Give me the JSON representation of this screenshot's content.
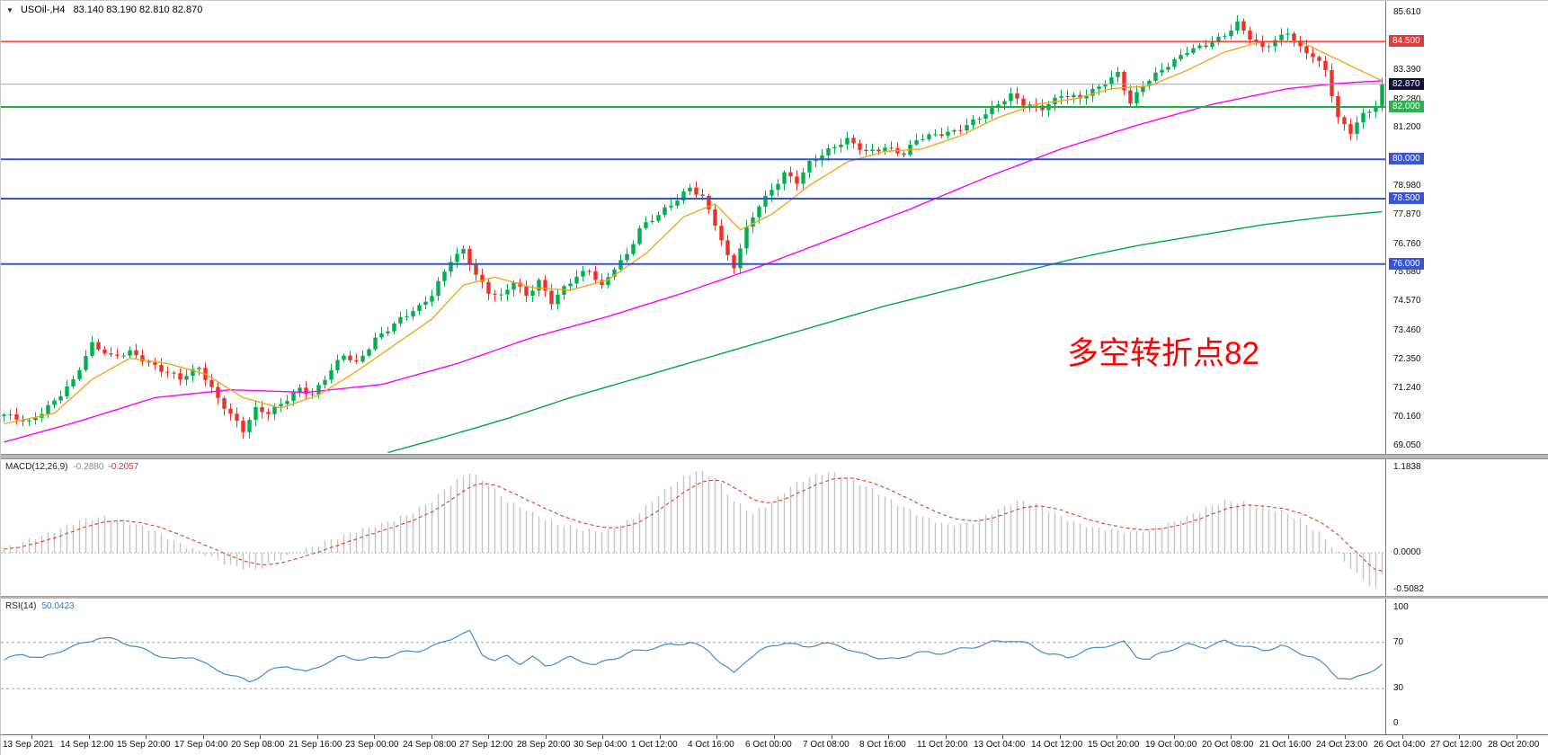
{
  "header": {
    "symbol_period": "USOil-,H4",
    "ohlc": "83.140 83.190 82.810 82.870"
  },
  "annotation": {
    "text": "多空转折点82",
    "color": "#ff0000"
  },
  "macd": {
    "label": "MACD(12,26,9)",
    "value_main": "-0.2880",
    "value_signal": "-0.2057",
    "axis_labels": [
      "1.1838",
      "0.0000",
      "-0.5082"
    ]
  },
  "rsi": {
    "label": "RSI(14)",
    "value": "50.0423",
    "axis_labels": [
      "100",
      "70",
      "30",
      "0"
    ],
    "levels": [
      70,
      30
    ]
  },
  "price_axis": {
    "tick_labels": [
      "85.610",
      "83.390",
      "82.280",
      "81.200",
      "78.980",
      "77.870",
      "76.760",
      "75.680",
      "74.570",
      "73.460",
      "72.350",
      "71.240",
      "70.160",
      "69.050"
    ],
    "badges": [
      {
        "value": "84.500",
        "price": 84.5,
        "color": "#e03c3c",
        "type": "resistance-level"
      },
      {
        "value": "82.870",
        "price": 82.87,
        "color": "#10103a",
        "type": "current-price"
      },
      {
        "value": "82.000",
        "price": 82.0,
        "color": "#2eb24c",
        "type": "support-level"
      },
      {
        "value": "80.000",
        "price": 80.0,
        "color": "#3a55d4",
        "type": "support-level"
      },
      {
        "value": "78.500",
        "price": 78.5,
        "color": "#3a55d4",
        "type": "support-level"
      },
      {
        "value": "76.000",
        "price": 76.0,
        "color": "#3a55d4",
        "type": "support-level"
      }
    ]
  },
  "levels": [
    {
      "price": 84.5,
      "color": "#ff2a2a",
      "width": 1.4
    },
    {
      "price": 82.87,
      "color": "#8fb0d6",
      "width": 1
    },
    {
      "price": 82.0,
      "color": "#17b33c",
      "width": 2
    },
    {
      "price": 80.0,
      "color": "#3355cc",
      "width": 2
    },
    {
      "price": 78.5,
      "color": "#3355cc",
      "width": 2
    },
    {
      "price": 76.0,
      "color": "#3355cc",
      "width": 2
    }
  ],
  "chart_data": {
    "type": "candlestick",
    "symbol": "USOil-",
    "timeframe": "H4",
    "title": "USOil-,H4 83.140 83.190 82.810 82.870",
    "last_close": 82.87,
    "ylim": [
      68.75,
      86.05
    ],
    "macd_ylim": [
      -0.6,
      1.3
    ],
    "rsi_ylim": [
      0,
      100
    ],
    "n_bars": 220,
    "x_tick_labels": [
      "13 Sep 2021",
      "14 Sep 12:00",
      "15 Sep 20:00",
      "17 Sep 04:00",
      "20 Sep 08:00",
      "21 Sep 16:00",
      "23 Sep 00:00",
      "24 Sep 08:00",
      "27 Sep 12:00",
      "28 Sep 20:00",
      "30 Sep 04:00",
      "1 Oct 12:00",
      "4 Oct 16:00",
      "6 Oct 00:00",
      "7 Oct 08:00",
      "8 Oct 16:00",
      "11 Oct 20:00",
      "13 Oct 04:00",
      "14 Oct 12:00",
      "15 Oct 20:00",
      "19 Oct 00:00",
      "20 Oct 08:00",
      "21 Oct 16:00",
      "24 Oct 23:00",
      "26 Oct 04:00",
      "27 Oct 12:00",
      "28 Oct 20:00"
    ],
    "close_anchors": [
      [
        0,
        70.2
      ],
      [
        4,
        70.0
      ],
      [
        8,
        70.8
      ],
      [
        11,
        71.5
      ],
      [
        14,
        72.9
      ],
      [
        17,
        72.5
      ],
      [
        20,
        72.7
      ],
      [
        23,
        72.2
      ],
      [
        25,
        71.9
      ],
      [
        28,
        71.6
      ],
      [
        31,
        72.1
      ],
      [
        34,
        70.9
      ],
      [
        38,
        69.6
      ],
      [
        40,
        70.4
      ],
      [
        42,
        70.3
      ],
      [
        45,
        70.9
      ],
      [
        47,
        71.3
      ],
      [
        49,
        71.0
      ],
      [
        52,
        71.9
      ],
      [
        54,
        72.5
      ],
      [
        56,
        72.2
      ],
      [
        59,
        73.2
      ],
      [
        63,
        73.9
      ],
      [
        66,
        74.3
      ],
      [
        68,
        74.8
      ],
      [
        71,
        76.2
      ],
      [
        73,
        76.6
      ],
      [
        75,
        75.6
      ],
      [
        77,
        74.9
      ],
      [
        79,
        74.7
      ],
      [
        81,
        75.3
      ],
      [
        83,
        74.8
      ],
      [
        85,
        75.4
      ],
      [
        87,
        74.6
      ],
      [
        89,
        75.1
      ],
      [
        91,
        75.5
      ],
      [
        93,
        75.7
      ],
      [
        95,
        75.1
      ],
      [
        97,
        75.9
      ],
      [
        99,
        76.4
      ],
      [
        101,
        77.4
      ],
      [
        103,
        77.7
      ],
      [
        106,
        78.2
      ],
      [
        109,
        78.9
      ],
      [
        111,
        78.6
      ],
      [
        113,
        77.6
      ],
      [
        115,
        76.3
      ],
      [
        116,
        75.9
      ],
      [
        118,
        77.3
      ],
      [
        120,
        78.2
      ],
      [
        122,
        78.8
      ],
      [
        124,
        79.5
      ],
      [
        126,
        79.2
      ],
      [
        128,
        79.9
      ],
      [
        131,
        80.3
      ],
      [
        134,
        80.7
      ],
      [
        137,
        80.3
      ],
      [
        140,
        80.5
      ],
      [
        143,
        80.2
      ],
      [
        145,
        80.7
      ],
      [
        148,
        80.9
      ],
      [
        151,
        81.1
      ],
      [
        154,
        81.5
      ],
      [
        157,
        81.9
      ],
      [
        160,
        82.4
      ],
      [
        162,
        82.1
      ],
      [
        165,
        82.0
      ],
      [
        168,
        82.5
      ],
      [
        171,
        82.3
      ],
      [
        174,
        82.7
      ],
      [
        177,
        83.3
      ],
      [
        179,
        82.2
      ],
      [
        181,
        82.9
      ],
      [
        184,
        83.4
      ],
      [
        186,
        83.7
      ],
      [
        188,
        84.1
      ],
      [
        191,
        84.4
      ],
      [
        194,
        84.8
      ],
      [
        196,
        85.2
      ],
      [
        198,
        84.6
      ],
      [
        200,
        84.2
      ],
      [
        202,
        84.5
      ],
      [
        204,
        84.9
      ],
      [
        206,
        84.3
      ],
      [
        208,
        84.0
      ],
      [
        210,
        83.4
      ],
      [
        212,
        81.5
      ],
      [
        214,
        81.0
      ],
      [
        216,
        81.7
      ],
      [
        218,
        82.1
      ],
      [
        219,
        82.87
      ]
    ],
    "ma_fast_anchors": [
      [
        0,
        69.9
      ],
      [
        8,
        70.3
      ],
      [
        14,
        71.6
      ],
      [
        20,
        72.4
      ],
      [
        26,
        72.2
      ],
      [
        32,
        71.8
      ],
      [
        38,
        70.9
      ],
      [
        44,
        70.5
      ],
      [
        50,
        71.0
      ],
      [
        56,
        71.9
      ],
      [
        62,
        72.9
      ],
      [
        68,
        73.9
      ],
      [
        73,
        75.2
      ],
      [
        78,
        75.5
      ],
      [
        84,
        75.1
      ],
      [
        90,
        75.0
      ],
      [
        96,
        75.4
      ],
      [
        102,
        76.4
      ],
      [
        108,
        77.8
      ],
      [
        113,
        78.3
      ],
      [
        117,
        77.3
      ],
      [
        122,
        77.9
      ],
      [
        128,
        79.0
      ],
      [
        134,
        79.9
      ],
      [
        140,
        80.3
      ],
      [
        146,
        80.4
      ],
      [
        152,
        80.9
      ],
      [
        158,
        81.6
      ],
      [
        164,
        82.1
      ],
      [
        170,
        82.3
      ],
      [
        176,
        82.7
      ],
      [
        182,
        82.8
      ],
      [
        188,
        83.4
      ],
      [
        194,
        84.1
      ],
      [
        200,
        84.5
      ],
      [
        206,
        84.5
      ],
      [
        212,
        83.8
      ],
      [
        219,
        83.0
      ]
    ],
    "ma_mid_anchors": [
      [
        0,
        69.2
      ],
      [
        12,
        70.0
      ],
      [
        24,
        70.9
      ],
      [
        36,
        71.2
      ],
      [
        48,
        71.1
      ],
      [
        60,
        71.4
      ],
      [
        72,
        72.2
      ],
      [
        84,
        73.2
      ],
      [
        96,
        74.0
      ],
      [
        108,
        74.9
      ],
      [
        120,
        75.9
      ],
      [
        132,
        77.0
      ],
      [
        144,
        78.1
      ],
      [
        156,
        79.3
      ],
      [
        168,
        80.4
      ],
      [
        180,
        81.3
      ],
      [
        192,
        82.1
      ],
      [
        204,
        82.7
      ],
      [
        212,
        82.9
      ],
      [
        219,
        83.0
      ]
    ],
    "ma_slow_anchors": [
      [
        61,
        68.8
      ],
      [
        70,
        69.4
      ],
      [
        80,
        70.1
      ],
      [
        90,
        70.9
      ],
      [
        100,
        71.6
      ],
      [
        110,
        72.3
      ],
      [
        120,
        73.0
      ],
      [
        130,
        73.7
      ],
      [
        140,
        74.4
      ],
      [
        150,
        75.0
      ],
      [
        160,
        75.6
      ],
      [
        170,
        76.2
      ],
      [
        180,
        76.7
      ],
      [
        190,
        77.1
      ],
      [
        200,
        77.5
      ],
      [
        210,
        77.8
      ],
      [
        219,
        78.0
      ]
    ],
    "macd_anchors": [
      [
        0,
        0.05
      ],
      [
        4,
        0.18
      ],
      [
        8,
        0.3
      ],
      [
        12,
        0.45
      ],
      [
        16,
        0.5
      ],
      [
        20,
        0.42
      ],
      [
        24,
        0.3
      ],
      [
        28,
        0.12
      ],
      [
        32,
        -0.02
      ],
      [
        36,
        -0.18
      ],
      [
        40,
        -0.24
      ],
      [
        44,
        -0.08
      ],
      [
        48,
        0.05
      ],
      [
        52,
        0.18
      ],
      [
        56,
        0.3
      ],
      [
        60,
        0.4
      ],
      [
        64,
        0.52
      ],
      [
        68,
        0.72
      ],
      [
        71,
        0.95
      ],
      [
        74,
        1.12
      ],
      [
        77,
        0.95
      ],
      [
        80,
        0.72
      ],
      [
        84,
        0.55
      ],
      [
        88,
        0.4
      ],
      [
        92,
        0.32
      ],
      [
        96,
        0.3
      ],
      [
        100,
        0.48
      ],
      [
        104,
        0.8
      ],
      [
        107,
        1.0
      ],
      [
        110,
        1.14
      ],
      [
        113,
        1.05
      ],
      [
        116,
        0.72
      ],
      [
        119,
        0.55
      ],
      [
        122,
        0.7
      ],
      [
        125,
        0.92
      ],
      [
        128,
        1.05
      ],
      [
        131,
        1.12
      ],
      [
        134,
        1.05
      ],
      [
        138,
        0.88
      ],
      [
        142,
        0.68
      ],
      [
        146,
        0.5
      ],
      [
        150,
        0.38
      ],
      [
        154,
        0.42
      ],
      [
        158,
        0.6
      ],
      [
        161,
        0.72
      ],
      [
        164,
        0.68
      ],
      [
        167,
        0.55
      ],
      [
        170,
        0.42
      ],
      [
        173,
        0.35
      ],
      [
        176,
        0.32
      ],
      [
        179,
        0.28
      ],
      [
        182,
        0.32
      ],
      [
        185,
        0.4
      ],
      [
        188,
        0.5
      ],
      [
        191,
        0.62
      ],
      [
        194,
        0.72
      ],
      [
        197,
        0.7
      ],
      [
        200,
        0.62
      ],
      [
        203,
        0.58
      ],
      [
        206,
        0.45
      ],
      [
        209,
        0.28
      ],
      [
        211,
        0.1
      ],
      [
        213,
        -0.12
      ],
      [
        215,
        -0.3
      ],
      [
        217,
        -0.45
      ],
      [
        218,
        -0.51
      ],
      [
        219,
        -0.29
      ]
    ],
    "rsi_anchors": [
      [
        0,
        55
      ],
      [
        3,
        60
      ],
      [
        6,
        56
      ],
      [
        9,
        63
      ],
      [
        12,
        68
      ],
      [
        15,
        74
      ],
      [
        18,
        72
      ],
      [
        21,
        66
      ],
      [
        24,
        60
      ],
      [
        27,
        55
      ],
      [
        30,
        58
      ],
      [
        33,
        48
      ],
      [
        36,
        42
      ],
      [
        39,
        36
      ],
      [
        42,
        45
      ],
      [
        45,
        50
      ],
      [
        48,
        44
      ],
      [
        51,
        52
      ],
      [
        54,
        58
      ],
      [
        57,
        55
      ],
      [
        60,
        57
      ],
      [
        63,
        61
      ],
      [
        66,
        63
      ],
      [
        69,
        68
      ],
      [
        72,
        76
      ],
      [
        74,
        79
      ],
      [
        76,
        60
      ],
      [
        78,
        54
      ],
      [
        80,
        58
      ],
      [
        82,
        52
      ],
      [
        84,
        57
      ],
      [
        86,
        50
      ],
      [
        88,
        53
      ],
      [
        90,
        57
      ],
      [
        92,
        54
      ],
      [
        94,
        50
      ],
      [
        96,
        55
      ],
      [
        98,
        58
      ],
      [
        100,
        62
      ],
      [
        103,
        65
      ],
      [
        106,
        68
      ],
      [
        109,
        70
      ],
      [
        112,
        63
      ],
      [
        114,
        52
      ],
      [
        116,
        43
      ],
      [
        118,
        55
      ],
      [
        120,
        62
      ],
      [
        122,
        67
      ],
      [
        124,
        70
      ],
      [
        127,
        66
      ],
      [
        130,
        69
      ],
      [
        133,
        67
      ],
      [
        136,
        60
      ],
      [
        139,
        57
      ],
      [
        142,
        55
      ],
      [
        145,
        62
      ],
      [
        148,
        60
      ],
      [
        151,
        63
      ],
      [
        154,
        66
      ],
      [
        157,
        70
      ],
      [
        160,
        72
      ],
      [
        163,
        68
      ],
      [
        166,
        60
      ],
      [
        169,
        57
      ],
      [
        172,
        63
      ],
      [
        175,
        67
      ],
      [
        178,
        70
      ],
      [
        180,
        58
      ],
      [
        182,
        55
      ],
      [
        184,
        61
      ],
      [
        186,
        65
      ],
      [
        188,
        68
      ],
      [
        191,
        66
      ],
      [
        194,
        71
      ],
      [
        197,
        67
      ],
      [
        200,
        63
      ],
      [
        203,
        67
      ],
      [
        206,
        61
      ],
      [
        208,
        57
      ],
      [
        210,
        50
      ],
      [
        212,
        40
      ],
      [
        214,
        37
      ],
      [
        216,
        43
      ],
      [
        218,
        47
      ],
      [
        219,
        50
      ]
    ],
    "colors": {
      "up": "#00b050",
      "down": "#ee3124",
      "ma_fast": "#f5a623",
      "ma_mid": "#ff00ff",
      "ma_slow": "#00a651",
      "macd_hist": "#c4c4c4",
      "macd_signal": "#e03a3a",
      "rsi": "#3e8fd0"
    }
  }
}
